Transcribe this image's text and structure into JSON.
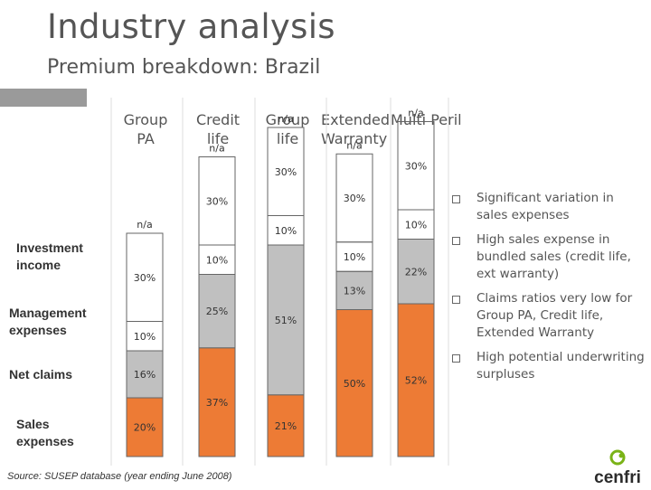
{
  "header": {
    "title": "Industry analysis",
    "subtitle": "Premium breakdown: Brazil"
  },
  "column_headers": [
    "Group\nPA",
    "Credit\nlife",
    "Group\nlife",
    "Extended\nWarranty",
    "Multi Peril"
  ],
  "row_labels": [
    "Investment\nincome",
    "Management\nexpenses",
    "Net claims",
    "Sales\nexpenses"
  ],
  "bullets": [
    "Significant variation in sales expenses",
    "High sales expense in bundled sales (credit life, ext warranty)",
    "Claims ratios very low for Group PA, Credit life, Extended Warranty",
    "High potential underwriting surpluses"
  ],
  "source": "Source: SUSEP database (year ending June 2008)",
  "logo": {
    "text": "cenfri",
    "icon": "cenfri-leaf-icon"
  },
  "colors": {
    "sales": "#ed7b35",
    "claims": "#c0c0c0",
    "bar_border": "#666666",
    "accent": "#9a9a9a",
    "logo_green": "#7ab317"
  },
  "chart_data": {
    "type": "bar",
    "stacked": true,
    "categories": [
      "Group PA",
      "Credit life",
      "Group life",
      "Extended Warranty",
      "Multi Peril"
    ],
    "series": [
      {
        "name": "Sales expenses",
        "values": [
          20,
          37,
          21,
          50,
          52
        ],
        "labels": [
          "20%",
          "37%",
          "21%",
          "50%",
          "52%"
        ]
      },
      {
        "name": "Net claims",
        "values": [
          16,
          25,
          51,
          13,
          22
        ],
        "labels": [
          "16%",
          "25%",
          "51%",
          "13%",
          "22%"
        ]
      },
      {
        "name": "Management expenses",
        "values": [
          10,
          10,
          10,
          10,
          10
        ],
        "labels": [
          "10%",
          "10%",
          "10%",
          "10%",
          "10%"
        ]
      },
      {
        "name": "Investment income",
        "values": [
          30,
          30,
          30,
          30,
          30
        ],
        "labels": [
          "30%",
          "30%",
          "30%",
          "30%",
          "30%"
        ]
      }
    ],
    "top_labels": [
      "n/a",
      "n/a",
      "n/a",
      "n/a",
      "n/a"
    ],
    "grid": false,
    "legend": "left (row labels)"
  }
}
